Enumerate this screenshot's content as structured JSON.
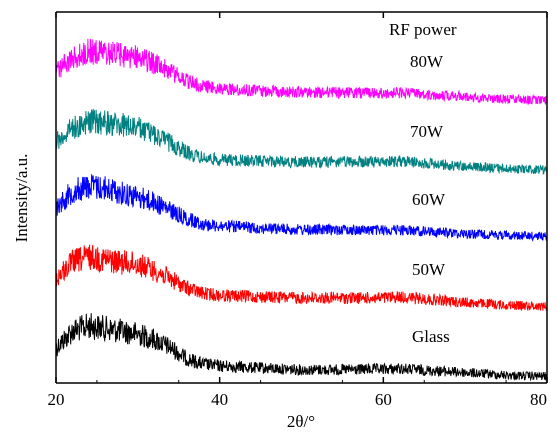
{
  "chart_data": {
    "type": "line",
    "title": "",
    "xlabel": "2θ/°",
    "ylabel": "Intensity/a.u.",
    "xlim": [
      20,
      80
    ],
    "x_ticks": [
      20,
      40,
      60,
      80
    ],
    "y_ticks_shown": false,
    "grid": false,
    "legend_title": "RF power",
    "legend_placement": "top-right",
    "series": [
      {
        "name": "Glass",
        "color": "#000000",
        "offset": 0,
        "x": [
          20,
          22,
          24,
          26,
          28,
          30,
          32,
          34,
          36,
          38,
          40,
          45,
          50,
          55,
          60,
          62,
          65,
          70,
          75,
          80
        ],
        "y": [
          0.55,
          0.85,
          0.95,
          0.9,
          0.85,
          0.8,
          0.7,
          0.55,
          0.35,
          0.25,
          0.22,
          0.18,
          0.15,
          0.15,
          0.16,
          0.17,
          0.14,
          0.1,
          0.05,
          0.03
        ]
      },
      {
        "name": "50W",
        "color": "#ff0000",
        "offset": 1,
        "x": [
          20,
          22,
          24,
          26,
          28,
          30,
          32,
          34,
          36,
          38,
          40,
          45,
          50,
          55,
          60,
          62,
          65,
          70,
          75,
          80
        ],
        "y": [
          0.55,
          0.85,
          0.95,
          0.9,
          0.85,
          0.82,
          0.7,
          0.55,
          0.38,
          0.28,
          0.25,
          0.22,
          0.2,
          0.2,
          0.2,
          0.22,
          0.18,
          0.12,
          0.07,
          0.05
        ]
      },
      {
        "name": "60W",
        "color": "#0000ff",
        "offset": 2,
        "x": [
          20,
          22,
          24,
          26,
          28,
          30,
          32,
          34,
          36,
          38,
          40,
          45,
          50,
          55,
          60,
          62,
          65,
          70,
          75,
          80
        ],
        "y": [
          0.55,
          0.85,
          0.95,
          0.9,
          0.82,
          0.75,
          0.65,
          0.5,
          0.35,
          0.25,
          0.22,
          0.18,
          0.15,
          0.15,
          0.14,
          0.15,
          0.12,
          0.08,
          0.05,
          0.03
        ]
      },
      {
        "name": "70W",
        "color": "#008080",
        "offset": 3,
        "x": [
          20,
          22,
          24,
          26,
          28,
          30,
          32,
          34,
          36,
          38,
          40,
          45,
          50,
          55,
          60,
          62,
          65,
          70,
          75,
          80
        ],
        "y": [
          0.55,
          0.8,
          0.92,
          0.9,
          0.85,
          0.8,
          0.68,
          0.52,
          0.35,
          0.25,
          0.22,
          0.2,
          0.18,
          0.18,
          0.18,
          0.2,
          0.16,
          0.1,
          0.06,
          0.04
        ]
      },
      {
        "name": "80W",
        "color": "#ff00ff",
        "offset": 4,
        "x": [
          20,
          22,
          24,
          26,
          28,
          30,
          32,
          34,
          36,
          38,
          40,
          45,
          50,
          55,
          60,
          62,
          65,
          70,
          75,
          80
        ],
        "y": [
          0.55,
          0.8,
          0.92,
          0.9,
          0.85,
          0.82,
          0.7,
          0.55,
          0.38,
          0.28,
          0.24,
          0.2,
          0.18,
          0.17,
          0.16,
          0.17,
          0.14,
          0.1,
          0.05,
          0.03
        ]
      }
    ]
  }
}
